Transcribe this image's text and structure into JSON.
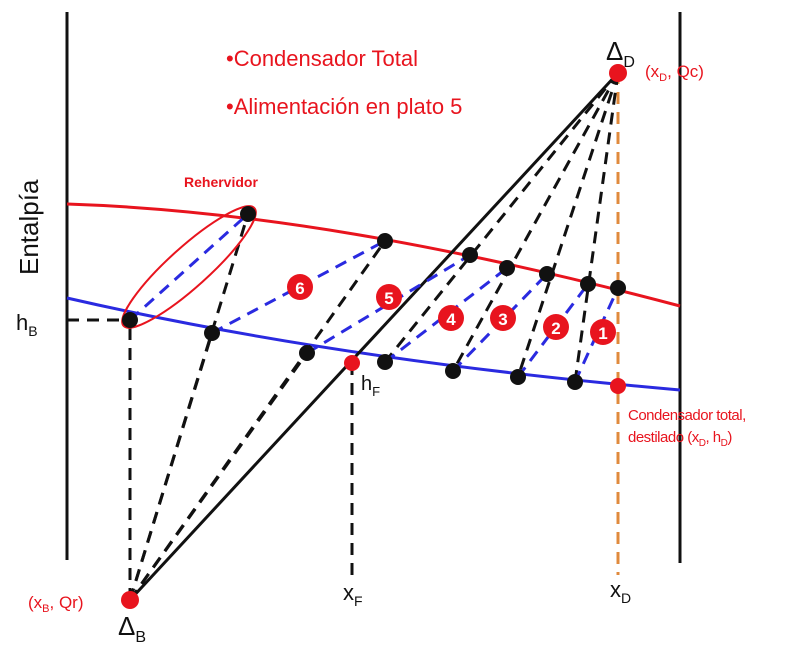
{
  "bullets": [
    "•Condensador Total",
    "•Alimentación en plato 5"
  ],
  "reboiler_label": "Rehervidor",
  "y_axis_label": "Entalpía",
  "hB": {
    "main": "h",
    "sub": "B"
  },
  "hF": {
    "main": "h",
    "sub": "F"
  },
  "xF": {
    "main": "x",
    "sub": "F"
  },
  "xD": {
    "main": "x",
    "sub": "D"
  },
  "deltaD": {
    "main": "Δ",
    "sub": "D"
  },
  "deltaB": {
    "main": "Δ",
    "sub": "B"
  },
  "deltaD_coords": {
    "pre": "(x",
    "sub": "D",
    "post": ", Qc)"
  },
  "deltaB_coords": {
    "pre": "(x",
    "sub": "B",
    "post": ", Qr)"
  },
  "condenser_note": {
    "line1": "Condensador total,",
    "line2_pre": "destilado (x",
    "sub1": "D",
    "mid": ",  h",
    "sub2": "D",
    "post": ")"
  },
  "stage_numbers": [
    "1",
    "2",
    "3",
    "4",
    "5",
    "6"
  ],
  "colors": {
    "red": "#e8141e",
    "blue": "#2a2ae0",
    "black": "#111111",
    "orange": "#e08a3c"
  }
}
